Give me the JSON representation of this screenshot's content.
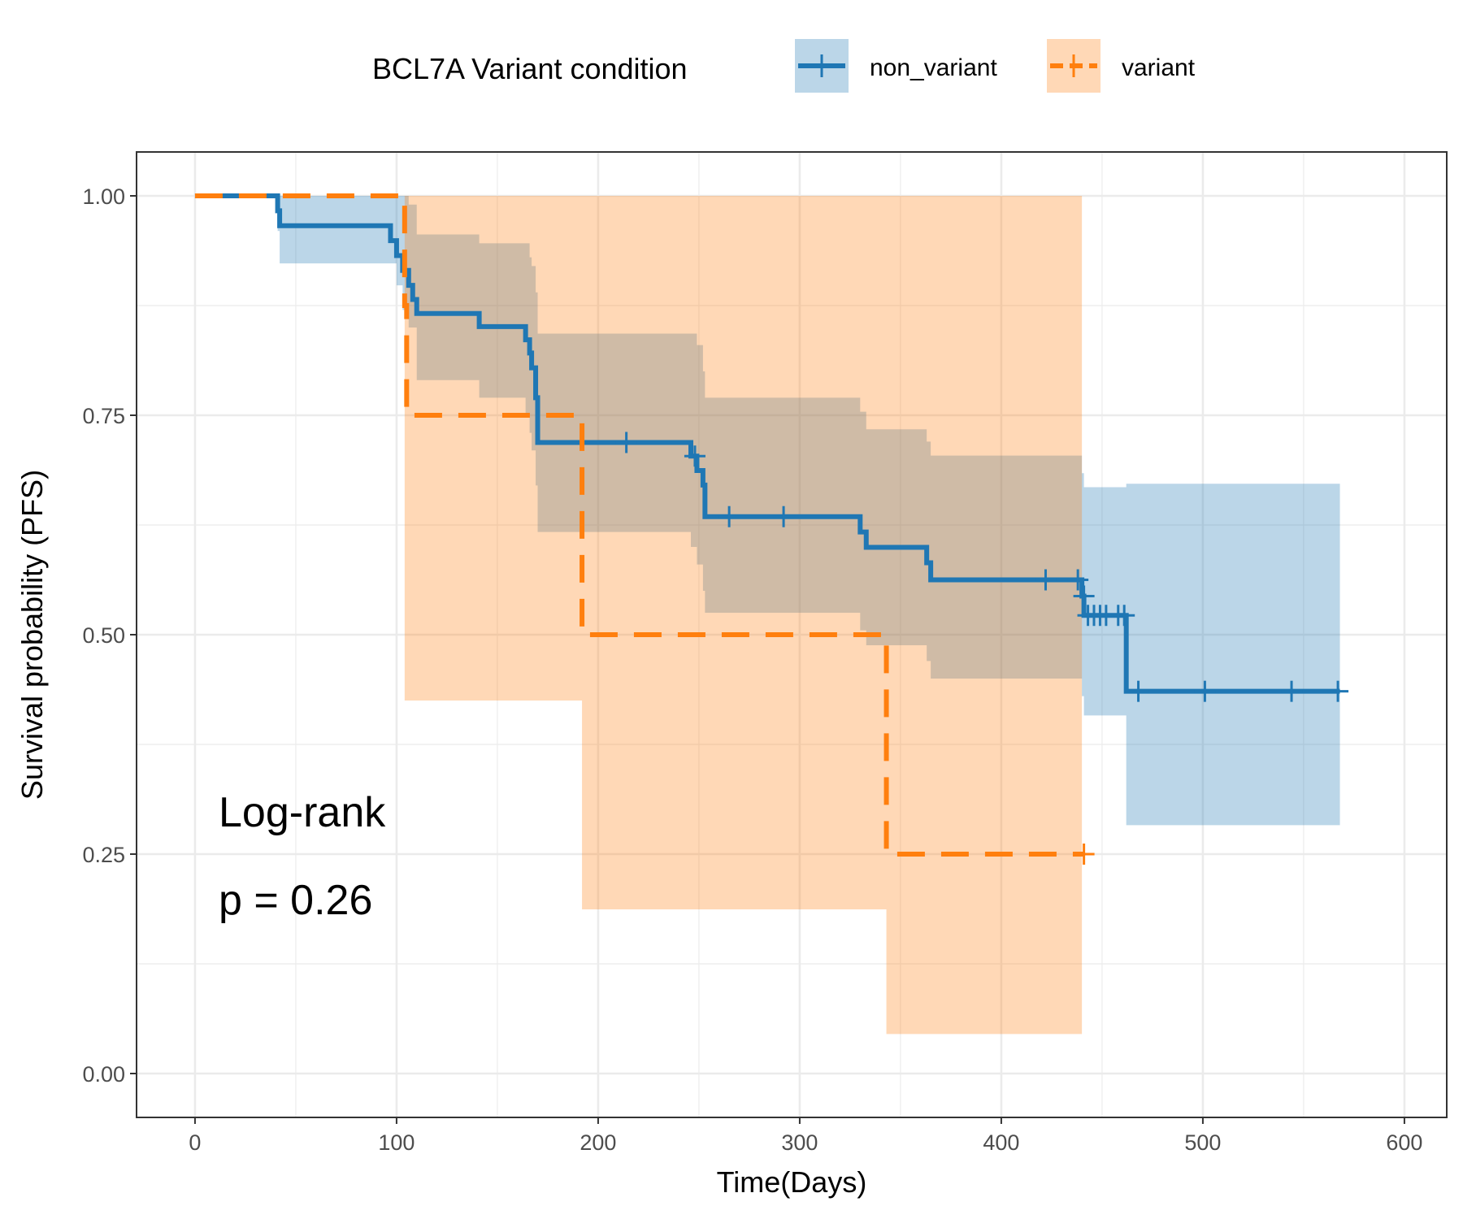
{
  "chart_data": {
    "type": "line",
    "subtype": "kaplan-meier step curves with confidence bands",
    "xlabel": "Time(Days)",
    "ylabel": "Survival probability (PFS)",
    "xlim": [
      -29,
      621
    ],
    "ylim": [
      -0.05,
      1.05
    ],
    "xticks": [
      "0",
      "100",
      "200",
      "300",
      "400",
      "500",
      "600"
    ],
    "xtick_values": [
      0,
      100,
      200,
      300,
      400,
      500,
      600
    ],
    "yticks": [
      "0.00",
      "0.25",
      "0.50",
      "0.75",
      "1.00"
    ],
    "ytick_values": [
      0,
      0.25,
      0.5,
      0.75,
      1.0
    ],
    "grid": true,
    "legend": {
      "title": "BCL7A Variant condition",
      "position": "top",
      "entries": [
        "non_variant",
        "variant"
      ]
    },
    "annotations": [
      "Log-rank",
      "p = 0.26"
    ],
    "series": [
      {
        "name": "non_variant",
        "color": "#1f77b4",
        "dash": "solid",
        "steps": [
          [
            0,
            1.0
          ],
          [
            41,
            0.983
          ],
          [
            42,
            0.966
          ],
          [
            97,
            0.949
          ],
          [
            100,
            0.932
          ],
          [
            103,
            0.915
          ],
          [
            106,
            0.898
          ],
          [
            108,
            0.882
          ],
          [
            110,
            0.866
          ],
          [
            141,
            0.851
          ],
          [
            164,
            0.836
          ],
          [
            166,
            0.821
          ],
          [
            167,
            0.804
          ],
          [
            169,
            0.77
          ],
          [
            170,
            0.719
          ],
          [
            246,
            0.7035
          ],
          [
            249,
            0.687
          ],
          [
            252,
            0.6705
          ],
          [
            253,
            0.6345
          ],
          [
            330,
            0.617
          ],
          [
            333,
            0.5995
          ],
          [
            363,
            0.582
          ],
          [
            365,
            0.5625
          ],
          [
            440,
            0.544
          ],
          [
            441,
            0.522
          ],
          [
            462,
            0.4355
          ],
          [
            568,
            0.4355
          ]
        ],
        "band": [
          [
            0,
            1.0,
            1.0
          ],
          [
            41,
            0.96,
            1.0
          ],
          [
            42,
            0.923,
            1.0
          ],
          [
            100,
            0.898,
            1.0
          ],
          [
            103,
            0.87,
            1.0
          ],
          [
            106,
            0.85,
            0.99
          ],
          [
            110,
            0.79,
            0.956
          ],
          [
            141,
            0.77,
            0.946
          ],
          [
            164,
            0.75,
            0.946
          ],
          [
            166,
            0.73,
            0.93
          ],
          [
            167,
            0.71,
            0.92
          ],
          [
            169,
            0.67,
            0.89
          ],
          [
            170,
            0.617,
            0.843
          ],
          [
            246,
            0.6,
            0.843
          ],
          [
            249,
            0.58,
            0.83
          ],
          [
            252,
            0.55,
            0.8
          ],
          [
            253,
            0.525,
            0.77
          ],
          [
            330,
            0.505,
            0.754
          ],
          [
            333,
            0.488,
            0.734
          ],
          [
            363,
            0.47,
            0.72
          ],
          [
            365,
            0.45,
            0.704
          ],
          [
            440,
            0.43,
            0.684
          ],
          [
            441,
            0.408,
            0.668
          ],
          [
            462,
            0.283,
            0.672
          ],
          [
            568,
            0.283,
            0.672
          ]
        ],
        "censor": [
          214,
          248,
          265,
          292,
          422,
          438,
          441,
          443,
          446,
          449,
          452,
          458,
          461,
          468,
          501,
          544,
          567
        ],
        "censor_y": [
          0.719,
          0.7035,
          0.6345,
          0.6345,
          0.5625,
          0.5625,
          0.544,
          0.522,
          0.522,
          0.522,
          0.522,
          0.522,
          0.522,
          0.4355,
          0.4355,
          0.4355,
          0.4355
        ]
      },
      {
        "name": "variant",
        "color": "#ff7f0e",
        "dash": "dashed",
        "steps": [
          [
            0,
            1.0
          ],
          [
            104,
            0.875
          ],
          [
            105,
            0.75
          ],
          [
            192,
            0.5
          ],
          [
            343,
            0.25
          ],
          [
            441,
            0.25
          ]
        ],
        "band": [
          [
            0,
            1.0,
            1.0
          ],
          [
            104,
            0.425,
            1.0
          ],
          [
            192,
            0.187,
            1.0
          ],
          [
            343,
            0.045,
            1.0
          ],
          [
            440,
            0.045,
            1.0
          ]
        ],
        "censor": [
          441
        ],
        "censor_y": [
          0.25
        ]
      }
    ]
  }
}
